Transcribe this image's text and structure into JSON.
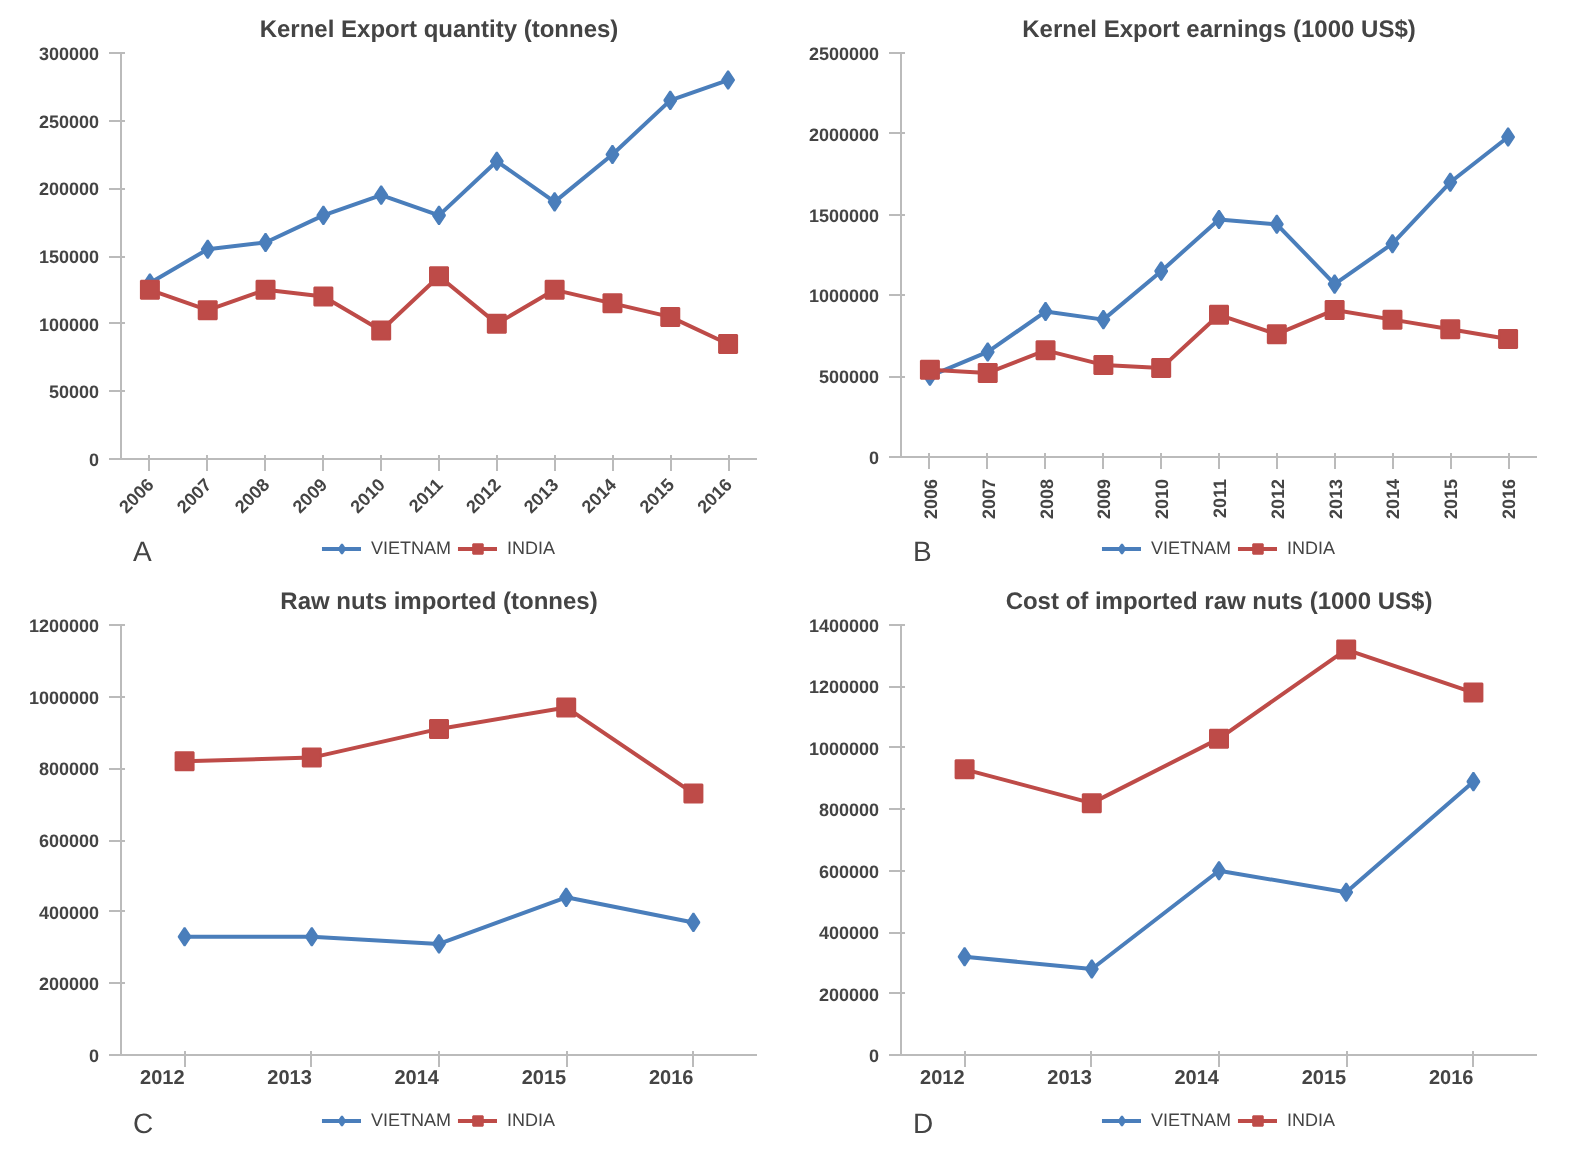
{
  "chart_data": [
    {
      "type": "line",
      "title": "Kernel Export quantity (tonnes)",
      "categories": [
        "2006",
        "2007",
        "2008",
        "2009",
        "2010",
        "2011",
        "2012",
        "2013",
        "2014",
        "2015",
        "2016"
      ],
      "ylim": [
        0,
        300000
      ],
      "yticks": [
        0,
        50000,
        100000,
        150000,
        200000,
        250000,
        300000
      ],
      "grid": false,
      "legend": "bottom",
      "annotations": [
        "A"
      ],
      "series": [
        {
          "name": "VIETNAM",
          "color": "#4a7ebb",
          "marker": "diamond",
          "values": [
            130000,
            155000,
            160000,
            180000,
            195000,
            180000,
            220000,
            190000,
            225000,
            265000,
            280000
          ]
        },
        {
          "name": "INDIA",
          "color": "#be4b48",
          "marker": "square",
          "values": [
            125000,
            110000,
            125000,
            120000,
            95000,
            135000,
            100000,
            125000,
            115000,
            105000,
            85000
          ]
        }
      ]
    },
    {
      "type": "line",
      "title": "Kernel Export earnings (1000 US$)",
      "categories": [
        "2006",
        "2007",
        "2008",
        "2009",
        "2010",
        "2011",
        "2012",
        "2013",
        "2014",
        "2015",
        "2016"
      ],
      "ylim": [
        0,
        2500000
      ],
      "yticks": [
        0,
        500000,
        1000000,
        1500000,
        2000000,
        2500000
      ],
      "grid": false,
      "legend": "bottom",
      "annotations": [
        "B"
      ],
      "series": [
        {
          "name": "VIETNAM",
          "color": "#4a7ebb",
          "marker": "diamond",
          "values": [
            500000,
            650000,
            900000,
            850000,
            1150000,
            1470000,
            1440000,
            1070000,
            1320000,
            1700000,
            1980000
          ]
        },
        {
          "name": "INDIA",
          "color": "#be4b48",
          "marker": "square",
          "values": [
            540000,
            520000,
            660000,
            570000,
            550000,
            880000,
            760000,
            910000,
            850000,
            790000,
            730000
          ]
        }
      ]
    },
    {
      "type": "line",
      "title": "Raw nuts imported (tonnes)",
      "categories": [
        "2012",
        "2013",
        "2014",
        "2015",
        "2016"
      ],
      "ylim": [
        0,
        1200000
      ],
      "yticks": [
        0,
        200000,
        400000,
        600000,
        800000,
        1000000,
        1200000
      ],
      "grid": false,
      "legend": "bottom",
      "annotations": [
        "C"
      ],
      "series": [
        {
          "name": "VIETNAM",
          "color": "#4a7ebb",
          "marker": "diamond",
          "values": [
            330000,
            330000,
            310000,
            440000,
            370000
          ]
        },
        {
          "name": "INDIA",
          "color": "#be4b48",
          "marker": "square",
          "values": [
            820000,
            830000,
            910000,
            970000,
            730000
          ]
        }
      ]
    },
    {
      "type": "line",
      "title": "Cost of imported raw nuts (1000 US$)",
      "categories": [
        "2012",
        "2013",
        "2014",
        "2015",
        "2016"
      ],
      "ylim": [
        0,
        1400000
      ],
      "yticks": [
        0,
        200000,
        400000,
        600000,
        800000,
        1000000,
        1200000,
        1400000
      ],
      "grid": false,
      "legend": "bottom",
      "annotations": [
        "D"
      ],
      "series": [
        {
          "name": "VIETNAM",
          "color": "#4a7ebb",
          "marker": "diamond",
          "values": [
            320000,
            280000,
            600000,
            530000,
            890000
          ]
        },
        {
          "name": "INDIA",
          "color": "#be4b48",
          "marker": "square",
          "values": [
            930000,
            820000,
            1030000,
            1320000,
            1180000
          ]
        }
      ]
    }
  ]
}
